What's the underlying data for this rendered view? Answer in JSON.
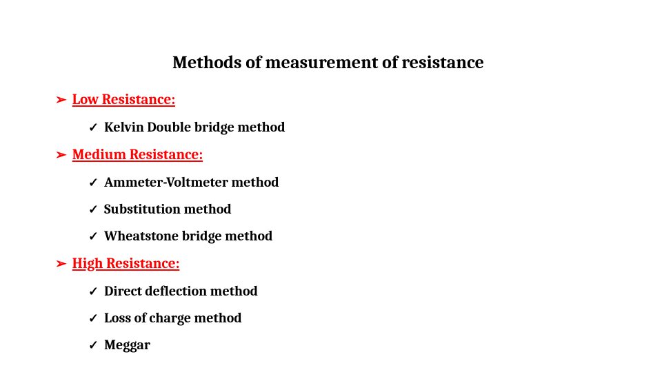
{
  "title": "Methods of measurement of resistance",
  "colors": {
    "section_heading": "#ff0000",
    "body_text": "#000000",
    "background": "#ffffff"
  },
  "typography": {
    "title_fontsize_pt": 20,
    "section_fontsize_pt": 16,
    "item_fontsize_pt": 15,
    "weight": "bold",
    "family": "serif"
  },
  "bullets": {
    "section_marker": "➢",
    "item_marker": "✓"
  },
  "sections": [
    {
      "heading": "Low Resistance:",
      "items": [
        "Kelvin Double bridge method"
      ]
    },
    {
      "heading": "Medium Resistance:",
      "items": [
        "Ammeter-Voltmeter method",
        "Substitution method",
        "Wheatstone bridge method"
      ]
    },
    {
      "heading": "High Resistance:",
      "items": [
        "Direct deflection method",
        "Loss of charge method",
        "Meggar"
      ]
    }
  ]
}
